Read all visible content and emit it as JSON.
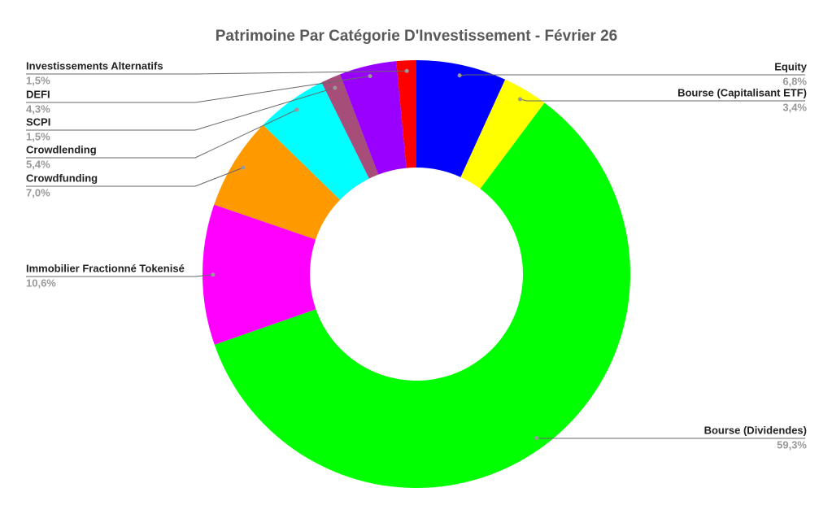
{
  "chart_data": {
    "type": "donut",
    "title": "Patrimoine Par Catégorie D'Investissement - Février 26",
    "categories": [
      "Equity",
      "Bourse (Capitalisant ETF)",
      "Bourse (Dividendes)",
      "Immobilier Fractionné Tokenisé",
      "Crowdfunding",
      "Crowdlending",
      "SCPI",
      "DEFI",
      "Investissements Alternatifs"
    ],
    "values": [
      6.8,
      3.4,
      59.3,
      10.6,
      7.0,
      5.4,
      1.5,
      4.3,
      1.5
    ],
    "value_labels": [
      "6,8%",
      "3,4%",
      "59,3%",
      "10,6%",
      "7,0%",
      "5,4%",
      "1,5%",
      "4,3%",
      "1,5%"
    ],
    "colors": [
      "#0000ff",
      "#ffff00",
      "#00ff00",
      "#ff00ff",
      "#ff9900",
      "#00ffff",
      "#a64d79",
      "#9900ff",
      "#ff0000"
    ]
  }
}
